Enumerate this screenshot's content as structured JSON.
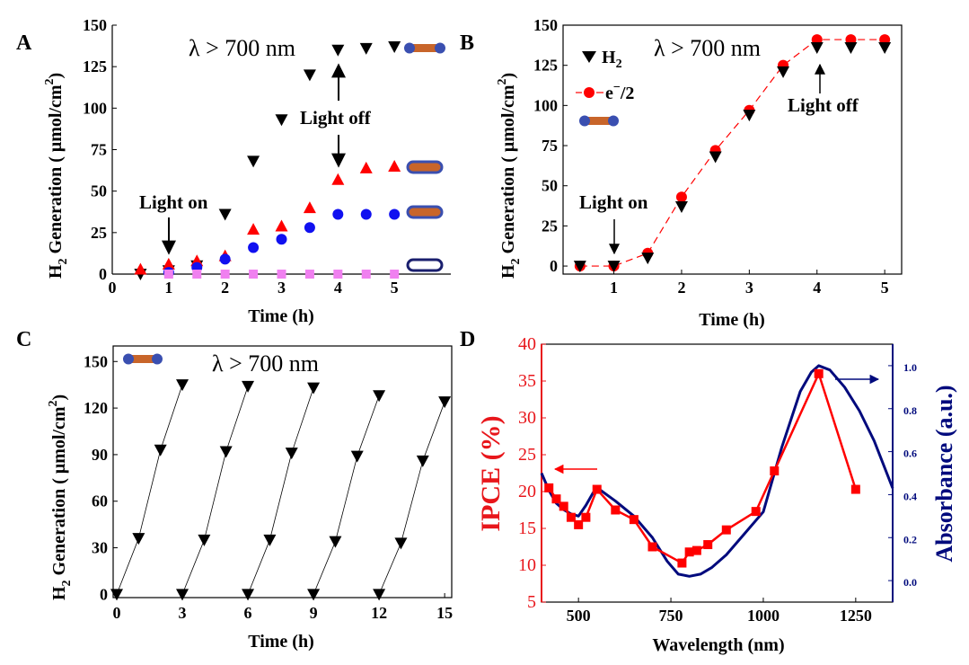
{
  "figure": {
    "panels": {
      "A": "A",
      "B": "B",
      "C": "C",
      "D": "D"
    },
    "colors": {
      "black": "#000000",
      "red": "#ff0000",
      "blue": "#1010f0",
      "pink": "#f080f0",
      "navy": "#000a7d",
      "orange_rod": "#c8652a",
      "rod_end": "#3a4fb0"
    }
  },
  "chart_data": [
    {
      "panel": "A",
      "type": "scatter",
      "title": "λ > 700 nm",
      "xlabel": "Time (h)",
      "ylabel_main": "H",
      "ylabel_sub": "2",
      "ylabel_rest": " Generation ( μmol/cm",
      "ylabel_sup": "2",
      "ylabel_end": ")",
      "xlim": [
        0,
        6
      ],
      "ylim": [
        0,
        150
      ],
      "xticks": [
        "0",
        "1",
        "2",
        "3",
        "4",
        "5"
      ],
      "yticks": [
        "0",
        "25",
        "50",
        "75",
        "100",
        "125",
        "150"
      ],
      "annotations": [
        "Light on",
        "Light off"
      ],
      "legend": "right-side nanostructure icons",
      "series": [
        {
          "marker": "down-triangle",
          "color": "#000000",
          "x": [
            0.5,
            1,
            1.5,
            2,
            2.5,
            3,
            3.5,
            4,
            4.5,
            5
          ],
          "y": [
            0,
            2,
            5,
            36,
            68,
            93,
            120,
            135,
            136,
            137
          ]
        },
        {
          "marker": "up-triangle",
          "color": "#ff0000",
          "x": [
            0.5,
            1,
            1.5,
            2,
            2.5,
            3,
            3.5,
            4,
            4.5,
            5
          ],
          "y": [
            3,
            6,
            8,
            11,
            27,
            29,
            40,
            57,
            64,
            65
          ]
        },
        {
          "marker": "circle",
          "color": "#1010f0",
          "x": [
            1,
            1.5,
            2,
            2.5,
            3,
            3.5,
            4,
            4.5,
            5
          ],
          "y": [
            1,
            4,
            9,
            16,
            21,
            28,
            36,
            36,
            36
          ]
        },
        {
          "marker": "square",
          "color": "#f080f0",
          "x": [
            1,
            1.5,
            2,
            2.5,
            3,
            3.5,
            4,
            4.5,
            5
          ],
          "y": [
            0,
            0,
            0,
            0,
            0,
            0,
            0,
            0,
            0
          ]
        }
      ]
    },
    {
      "panel": "B",
      "type": "scatter",
      "title": "λ > 700 nm",
      "xlabel": "Time (h)",
      "ylabel_main": "H",
      "ylabel_sub": "2",
      "ylabel_rest": " Generation ( μmol/cm",
      "ylabel_sup": "2",
      "ylabel_end": ")",
      "xlim": [
        0.25,
        5.25
      ],
      "ylim": [
        -5,
        150
      ],
      "xticks": [
        "1",
        "2",
        "3",
        "4",
        "5"
      ],
      "yticks": [
        "0",
        "25",
        "50",
        "75",
        "100",
        "125",
        "150"
      ],
      "annotations": [
        "Light on",
        "Light off"
      ],
      "legend": "top-left",
      "legend_h2_main": "H",
      "legend_h2_sub": "2",
      "legend_e_main": "e",
      "legend_e_sup": "−",
      "legend_e_end": "/2",
      "series": [
        {
          "name_ref": "H2",
          "marker": "down-triangle",
          "color": "#000000",
          "x": [
            0.5,
            1,
            1.5,
            2,
            2.5,
            3,
            3.5,
            4,
            4.5,
            5
          ],
          "y": [
            0,
            0,
            5,
            37,
            68,
            94,
            121,
            136,
            136,
            136
          ]
        },
        {
          "name_ref": "e-/2",
          "marker": "circle-dashed",
          "color": "#ff0000",
          "x": [
            0.5,
            1,
            1.5,
            2,
            2.5,
            3,
            3.5,
            4,
            4.5,
            5
          ],
          "y": [
            0,
            0,
            8,
            43,
            72,
            97,
            125,
            141,
            141,
            141
          ]
        }
      ]
    },
    {
      "panel": "C",
      "type": "line",
      "title": "λ > 700 nm",
      "xlabel": "Time (h)",
      "ylabel_main": "H",
      "ylabel_sub": "2",
      "ylabel_rest": " Generation ( μmol/cm",
      "ylabel_sup": "2",
      "ylabel_end": ")",
      "xlim": [
        0,
        15.2
      ],
      "ylim": [
        -5,
        160
      ],
      "xticks": [
        "0",
        "3",
        "6",
        "9",
        "12",
        "15"
      ],
      "yticks": [
        "0",
        "30",
        "60",
        "90",
        "120",
        "150"
      ],
      "cycles": [
        {
          "x": [
            0,
            1,
            2,
            3
          ],
          "y": [
            0,
            36,
            93,
            135
          ]
        },
        {
          "x": [
            3,
            4,
            5,
            6
          ],
          "y": [
            0,
            35,
            92,
            134
          ]
        },
        {
          "x": [
            6,
            7,
            8,
            9
          ],
          "y": [
            0,
            35,
            91,
            133
          ]
        },
        {
          "x": [
            9,
            10,
            11,
            12
          ],
          "y": [
            0,
            34,
            89,
            128
          ]
        },
        {
          "x": [
            12,
            13,
            14,
            15
          ],
          "y": [
            0,
            33,
            86,
            124
          ]
        }
      ]
    },
    {
      "panel": "D",
      "type": "line",
      "xlabel": "Wavelength (nm)",
      "ylabel_left": "IPCE (%)",
      "ylabel_right": "Absorbance (a.u.)",
      "xlim": [
        400,
        1350
      ],
      "ylim_left": [
        5,
        40
      ],
      "ylim_right": [
        -0.1,
        1.1
      ],
      "xticks": [
        "500",
        "750",
        "1000",
        "1250"
      ],
      "yticks_left": [
        "5",
        "10",
        "15",
        "20",
        "25",
        "30",
        "35",
        "40"
      ],
      "yticks_right": [
        "0.0",
        "0.2",
        "0.4",
        "0.6",
        "0.8",
        "1.0"
      ],
      "ipce": {
        "x": [
          420,
          440,
          460,
          480,
          500,
          520,
          550,
          600,
          650,
          700,
          780,
          800,
          820,
          850,
          900,
          980,
          1030,
          1150,
          1250
        ],
        "y": [
          20.5,
          19.0,
          18.0,
          16.5,
          15.5,
          16.5,
          20.3,
          17.5,
          16.2,
          12.5,
          10.3,
          11.8,
          12.0,
          12.8,
          14.8,
          17.3,
          22.8,
          36.0,
          20.3
        ]
      },
      "absorbance": {
        "x": [
          400,
          420,
          440,
          460,
          480,
          500,
          520,
          540,
          560,
          600,
          650,
          700,
          740,
          770,
          800,
          830,
          860,
          900,
          950,
          1000,
          1050,
          1100,
          1130,
          1150,
          1180,
          1220,
          1260,
          1300,
          1350
        ],
        "y": [
          0.5,
          0.42,
          0.36,
          0.33,
          0.31,
          0.3,
          0.35,
          0.41,
          0.42,
          0.37,
          0.3,
          0.2,
          0.09,
          0.03,
          0.02,
          0.03,
          0.06,
          0.12,
          0.22,
          0.32,
          0.62,
          0.88,
          0.97,
          1.0,
          0.98,
          0.9,
          0.79,
          0.65,
          0.43
        ]
      }
    }
  ]
}
